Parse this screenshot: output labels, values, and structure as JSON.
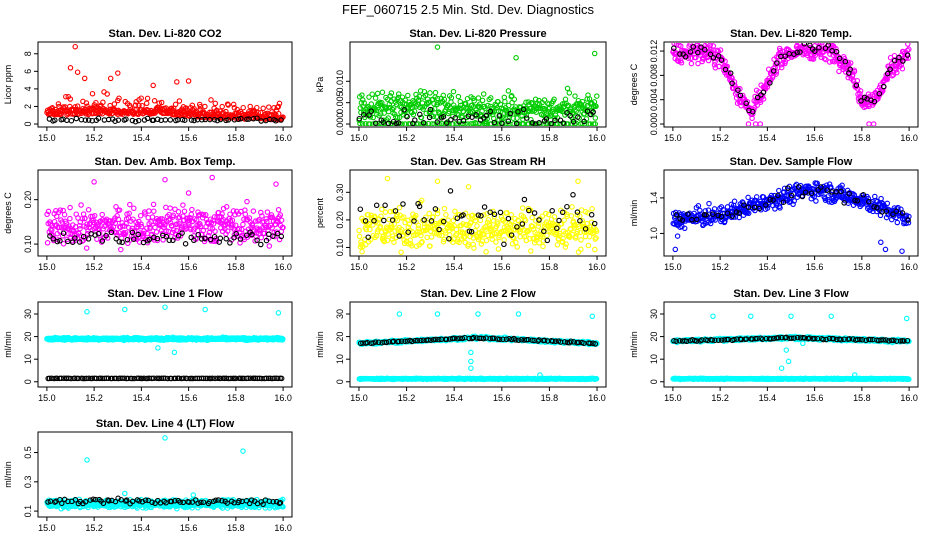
{
  "figure": {
    "title": "FEF_060715  2.5 Min. Std. Dev. Diagnostics"
  },
  "chart_data": [
    {
      "type": "scatter",
      "title": "Stan. Dev. Li-820 CO2",
      "ylabel": "Licor ppm",
      "xlim": [
        15.0,
        16.0
      ],
      "ylim": [
        0,
        9
      ],
      "x_ticks": [
        "15.0",
        "15.2",
        "15.4",
        "15.6",
        "15.8",
        "16.0"
      ],
      "y_ticks": [
        [
          "0",
          0
        ],
        [
          "2",
          2
        ],
        [
          "4",
          4
        ],
        [
          "6",
          6
        ],
        [
          "8",
          8
        ]
      ],
      "series": [
        {
          "name": "mean",
          "color": "#ff0000",
          "n": 420,
          "center": [
            [
              15.0,
              1.3
            ],
            [
              15.5,
              1.4
            ],
            [
              15.7,
              0.9
            ],
            [
              16.0,
              0.7
            ]
          ],
          "spread": 0.9,
          "positive_skew": true,
          "outliers": [
            [
              15.12,
              8.8
            ],
            [
              15.1,
              6.4
            ],
            [
              15.13,
              5.9
            ],
            [
              15.3,
              5.8
            ],
            [
              15.16,
              5.2
            ],
            [
              15.27,
              5.2
            ],
            [
              15.45,
              4.4
            ],
            [
              15.55,
              4.8
            ],
            [
              15.6,
              4.9
            ],
            [
              15.98,
              2.0
            ]
          ]
        },
        {
          "name": "overlay",
          "color": "#000000",
          "n": 60,
          "center": [
            [
              15.0,
              0.5
            ],
            [
              16.0,
              0.5
            ]
          ],
          "spread": 0.15
        }
      ]
    },
    {
      "type": "scatter",
      "title": "Stan. Dev. Li-820 Pressure",
      "ylabel": "kPa",
      "xlim": [
        15.0,
        16.0
      ],
      "ylim": [
        0,
        0.0185
      ],
      "x_ticks": [
        "15.0",
        "15.2",
        "15.4",
        "15.6",
        "15.8",
        "16.0"
      ],
      "y_ticks": [
        [
          "0.000",
          0
        ],
        [
          "0.005",
          0.005
        ],
        [
          "0.010",
          0.01
        ]
      ],
      "series": [
        {
          "name": "mean",
          "color": "#00cc00",
          "n": 420,
          "center": [
            [
              15.0,
              0.0038
            ],
            [
              16.0,
              0.0038
            ]
          ],
          "spread": 0.0022,
          "outliers": [
            [
              15.33,
              0.018
            ],
            [
              15.66,
              0.0155
            ],
            [
              15.99,
              0.0165
            ]
          ]
        },
        {
          "name": "zero",
          "color": "#00cc00",
          "n": 90,
          "center": [
            [
              15.0,
              0.0
            ],
            [
              16.0,
              0.0
            ]
          ],
          "spread": 0.0001
        },
        {
          "name": "overlay",
          "color": "#000000",
          "n": 60,
          "center": [
            [
              15.0,
              0.0012
            ],
            [
              16.0,
              0.0012
            ]
          ],
          "spread": 0.0015
        }
      ]
    },
    {
      "type": "scatter",
      "title": "Stan. Dev. Li-820 Temp.",
      "ylabel": "degrees C",
      "xlim": [
        15.0,
        16.0
      ],
      "ylim": [
        0,
        0.013
      ],
      "x_ticks": [
        "15.0",
        "15.2",
        "15.4",
        "15.6",
        "15.8",
        "16.0"
      ],
      "y_ticks": [
        [
          "0.000",
          0
        ],
        [
          "0.004",
          0.004
        ],
        [
          "0.008",
          0.008
        ],
        [
          "0.012",
          0.012
        ]
      ],
      "series": [
        {
          "name": "mean",
          "color": "#ff00ff",
          "n": 480,
          "center": [
            [
              15.0,
              0.0113
            ],
            [
              15.1,
              0.012
            ],
            [
              15.2,
              0.011
            ],
            [
              15.27,
              0.0055
            ],
            [
              15.33,
              0.002
            ],
            [
              15.39,
              0.0055
            ],
            [
              15.45,
              0.011
            ],
            [
              15.55,
              0.0122
            ],
            [
              15.68,
              0.012
            ],
            [
              15.75,
              0.009
            ],
            [
              15.8,
              0.004
            ],
            [
              15.86,
              0.004
            ],
            [
              15.92,
              0.009
            ],
            [
              16.0,
              0.012
            ]
          ],
          "spread": 0.0011,
          "outliers": [
            [
              15.32,
              0.0
            ],
            [
              15.35,
              0.0
            ],
            [
              15.37,
              0.0
            ],
            [
              15.83,
              0.0
            ],
            [
              15.85,
              0.0
            ]
          ]
        },
        {
          "name": "overlay",
          "color": "#000000",
          "n": 60,
          "center": [
            [
              15.0,
              0.0113
            ],
            [
              15.1,
              0.012
            ],
            [
              15.2,
              0.011
            ],
            [
              15.27,
              0.0055
            ],
            [
              15.33,
              0.002
            ],
            [
              15.39,
              0.0055
            ],
            [
              15.45,
              0.011
            ],
            [
              15.55,
              0.0122
            ],
            [
              15.68,
              0.012
            ],
            [
              15.75,
              0.009
            ],
            [
              15.8,
              0.004
            ],
            [
              15.86,
              0.004
            ],
            [
              15.92,
              0.009
            ],
            [
              16.0,
              0.012
            ]
          ],
          "spread": 0.0008
        }
      ]
    },
    {
      "type": "scatter",
      "title": "Stan. Dev. Amb. Box Temp.",
      "ylabel": "degrees C",
      "xlim": [
        15.0,
        16.0
      ],
      "ylim": [
        0.08,
        0.26
      ],
      "x_ticks": [
        "15.0",
        "15.2",
        "15.4",
        "15.6",
        "15.8",
        "16.0"
      ],
      "y_ticks": [
        [
          "0.10",
          0.1
        ],
        [
          "0.20",
          0.2
        ]
      ],
      "series": [
        {
          "name": "mean",
          "color": "#ff00ff",
          "n": 460,
          "center": [
            [
              15.0,
              0.135
            ],
            [
              15.5,
              0.145
            ],
            [
              16.0,
              0.14
            ]
          ],
          "spread": 0.028,
          "outliers": [
            [
              15.2,
              0.24
            ],
            [
              15.5,
              0.245
            ],
            [
              15.7,
              0.25
            ],
            [
              15.97,
              0.235
            ],
            [
              15.6,
              0.215
            ]
          ]
        },
        {
          "name": "overlay",
          "color": "#000000",
          "n": 60,
          "center": [
            [
              15.0,
              0.115
            ],
            [
              16.0,
              0.115
            ]
          ],
          "spread": 0.01
        }
      ]
    },
    {
      "type": "scatter",
      "title": "Stan. Dev. Gas Stream RH",
      "ylabel": "percent",
      "xlim": [
        15.0,
        16.0
      ],
      "ylim": [
        0.08,
        0.37
      ],
      "x_ticks": [
        "15.0",
        "15.2",
        "15.4",
        "15.6",
        "15.8",
        "16.0"
      ],
      "y_ticks": [
        [
          "0.10",
          0.1
        ],
        [
          "0.20",
          0.2
        ],
        [
          "0.30",
          0.3
        ]
      ],
      "series": [
        {
          "name": "mean",
          "color": "#ffff00",
          "n": 460,
          "center": [
            [
              15.0,
              0.17
            ],
            [
              16.0,
              0.17
            ]
          ],
          "spread": 0.05,
          "outliers": [
            [
              15.12,
              0.35
            ],
            [
              15.33,
              0.34
            ],
            [
              15.46,
              0.32
            ],
            [
              15.92,
              0.34
            ]
          ]
        },
        {
          "name": "overlay",
          "color": "#000000",
          "n": 55,
          "center": [
            [
              15.0,
              0.2
            ],
            [
              16.0,
              0.2
            ]
          ],
          "spread": 0.06
        }
      ]
    },
    {
      "type": "scatter",
      "title": "Stan. Dev. Sample Flow",
      "ylabel": "ml/min",
      "xlim": [
        15.0,
        16.0
      ],
      "ylim": [
        0.78,
        1.68
      ],
      "x_ticks": [
        "15.0",
        "15.2",
        "15.4",
        "15.6",
        "15.8",
        "16.0"
      ],
      "y_ticks": [
        [
          "1.0",
          1.0
        ],
        [
          "1.4",
          1.4
        ]
      ],
      "series": [
        {
          "name": "mean",
          "color": "#0000ff",
          "n": 460,
          "center": [
            [
              15.0,
              1.15
            ],
            [
              15.2,
              1.2
            ],
            [
              15.4,
              1.37
            ],
            [
              15.6,
              1.5
            ],
            [
              15.8,
              1.38
            ],
            [
              16.0,
              1.15
            ]
          ],
          "spread": 0.07,
          "outliers": [
            [
              15.01,
              0.82
            ],
            [
              15.02,
              0.97
            ],
            [
              15.9,
              0.82
            ],
            [
              15.97,
              0.8
            ],
            [
              15.88,
              0.9
            ]
          ]
        },
        {
          "name": "overlay",
          "color": "#000000",
          "n": 50,
          "center": [
            [
              15.0,
              1.15
            ],
            [
              15.2,
              1.2
            ],
            [
              15.4,
              1.37
            ],
            [
              15.6,
              1.5
            ],
            [
              15.8,
              1.38
            ],
            [
              16.0,
              1.15
            ]
          ],
          "spread": 0.05
        }
      ]
    },
    {
      "type": "scatter",
      "title": "Stan. Dev. Line 1 Flow",
      "ylabel": "ml/min",
      "xlim": [
        15.0,
        16.0
      ],
      "ylim": [
        -1,
        34
      ],
      "x_ticks": [
        "15.0",
        "15.2",
        "15.4",
        "15.6",
        "15.8",
        "16.0"
      ],
      "y_ticks": [
        [
          "0",
          0
        ],
        [
          "10",
          10
        ],
        [
          "20",
          20
        ],
        [
          "30",
          30
        ]
      ],
      "series": [
        {
          "name": "mean",
          "color": "#00ffff",
          "n": 700,
          "center": [
            [
              15.0,
              19
            ],
            [
              16.0,
              19
            ]
          ],
          "spread": 0.35,
          "outliers": [
            [
              15.17,
              31
            ],
            [
              15.33,
              32
            ],
            [
              15.5,
              33
            ],
            [
              15.67,
              32
            ],
            [
              15.98,
              30.5
            ],
            [
              15.47,
              15
            ],
            [
              15.54,
              13
            ]
          ]
        },
        {
          "name": "overlay",
          "color": "#000000",
          "n": 120,
          "center": [
            [
              15.0,
              1.5
            ],
            [
              16.0,
              1.5
            ]
          ],
          "spread": 0.05
        }
      ]
    },
    {
      "type": "scatter",
      "title": "Stan. Dev. Line 2 Flow",
      "ylabel": "ml/min",
      "xlim": [
        15.0,
        16.0
      ],
      "ylim": [
        -1,
        34
      ],
      "x_ticks": [
        "15.0",
        "15.2",
        "15.4",
        "15.6",
        "15.8",
        "16.0"
      ],
      "y_ticks": [
        [
          "0",
          0
        ],
        [
          "10",
          10
        ],
        [
          "20",
          20
        ],
        [
          "30",
          30
        ]
      ],
      "series": [
        {
          "name": "band",
          "color": "#00ffff",
          "n": 600,
          "center": [
            [
              15.0,
              17
            ],
            [
              15.5,
              19.5
            ],
            [
              16.0,
              17
            ]
          ],
          "spread": 0.4
        },
        {
          "name": "low",
          "color": "#00ffff",
          "n": 500,
          "center": [
            [
              15.0,
              1.3
            ],
            [
              16.0,
              1.3
            ]
          ],
          "spread": 0.15,
          "outliers": [
            [
              15.17,
              30
            ],
            [
              15.33,
              30
            ],
            [
              15.5,
              30
            ],
            [
              15.67,
              30
            ],
            [
              15.98,
              29
            ],
            [
              15.47,
              13
            ],
            [
              15.47,
              9
            ],
            [
              15.47,
              6
            ],
            [
              15.76,
              3
            ]
          ]
        },
        {
          "name": "overlay",
          "color": "#000000",
          "n": 90,
          "center": [
            [
              15.0,
              17
            ],
            [
              15.5,
              19.5
            ],
            [
              16.0,
              17
            ]
          ],
          "spread": 0.25
        }
      ]
    },
    {
      "type": "scatter",
      "title": "Stan. Dev. Line 3 Flow",
      "ylabel": "ml/min",
      "xlim": [
        15.0,
        16.0
      ],
      "ylim": [
        -1,
        34
      ],
      "x_ticks": [
        "15.0",
        "15.2",
        "15.4",
        "15.6",
        "15.8",
        "16.0"
      ],
      "y_ticks": [
        [
          "0",
          0
        ],
        [
          "10",
          10
        ],
        [
          "20",
          20
        ],
        [
          "30",
          30
        ]
      ],
      "series": [
        {
          "name": "band",
          "color": "#00ffff",
          "n": 600,
          "center": [
            [
              15.0,
              18
            ],
            [
              15.5,
              19.5
            ],
            [
              16.0,
              18
            ]
          ],
          "spread": 0.4
        },
        {
          "name": "low",
          "color": "#00ffff",
          "n": 500,
          "center": [
            [
              15.0,
              1.3
            ],
            [
              16.0,
              1.3
            ]
          ],
          "spread": 0.15,
          "outliers": [
            [
              15.17,
              29
            ],
            [
              15.33,
              29
            ],
            [
              15.5,
              29
            ],
            [
              15.67,
              29
            ],
            [
              15.99,
              28
            ],
            [
              15.48,
              14
            ],
            [
              15.55,
              17
            ],
            [
              15.49,
              9
            ],
            [
              15.46,
              6
            ],
            [
              15.77,
              3
            ]
          ]
        },
        {
          "name": "overlay",
          "color": "#000000",
          "n": 90,
          "center": [
            [
              15.0,
              18
            ],
            [
              15.5,
              19.5
            ],
            [
              16.0,
              18
            ]
          ],
          "spread": 0.25
        }
      ]
    },
    {
      "type": "scatter",
      "title": "Stan. Dev. Line 4 (LT) Flow",
      "ylabel": "ml/min",
      "xlim": [
        15.0,
        16.0
      ],
      "ylim": [
        0.08,
        0.62
      ],
      "x_ticks": [
        "15.0",
        "15.2",
        "15.4",
        "15.6",
        "15.8",
        "16.0"
      ],
      "y_ticks": [
        [
          "0.1",
          0.1
        ],
        [
          "0.3",
          0.3
        ],
        [
          "0.5",
          0.5
        ]
      ],
      "series": [
        {
          "name": "mean",
          "color": "#00ffff",
          "n": 700,
          "center": [
            [
              15.0,
              0.15
            ],
            [
              16.0,
              0.15
            ]
          ],
          "spread": 0.018,
          "outliers": [
            [
              15.17,
              0.45
            ],
            [
              15.5,
              0.6
            ],
            [
              15.83,
              0.51
            ],
            [
              15.33,
              0.22
            ],
            [
              15.62,
              0.21
            ]
          ]
        },
        {
          "name": "overlay",
          "color": "#000000",
          "n": 80,
          "center": [
            [
              15.0,
              0.165
            ],
            [
              16.0,
              0.165
            ]
          ],
          "spread": 0.012
        }
      ]
    }
  ]
}
